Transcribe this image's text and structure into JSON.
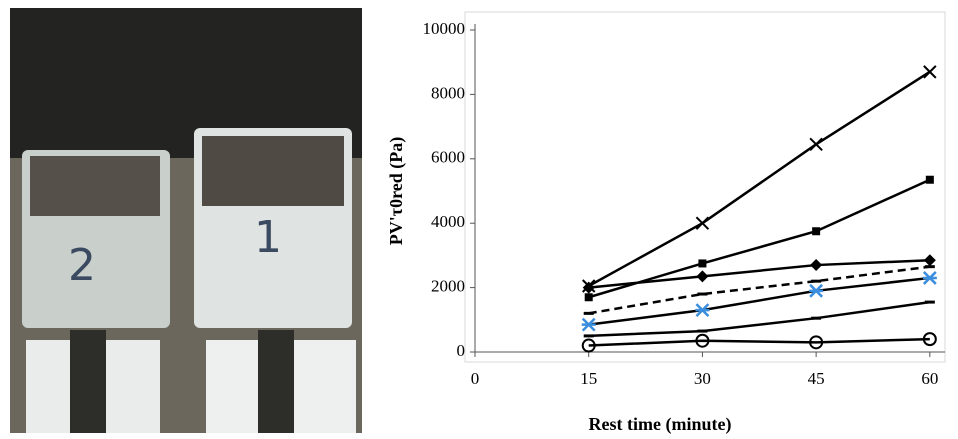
{
  "photo": {
    "labels": [
      "2",
      "1"
    ]
  },
  "chart_data": {
    "type": "line",
    "x_label": "Rest time (minute)",
    "y_label": "PV'τ0red (Pa)",
    "x": [
      15,
      30,
      45,
      60
    ],
    "xlim": [
      0,
      62
    ],
    "xticks": [
      0,
      15,
      30,
      45,
      60
    ],
    "ylim": [
      0,
      10000
    ],
    "yticks": [
      0,
      2000,
      4000,
      6000,
      8000,
      10000
    ],
    "series": [
      {
        "color": "#000000",
        "marker": "x",
        "values": [
          2050,
          4000,
          6450,
          8700
        ]
      },
      {
        "color": "#000000",
        "marker": "square",
        "values": [
          1700,
          2750,
          3750,
          5350
        ]
      },
      {
        "color": "#000000",
        "marker": "diamond",
        "values": [
          2000,
          2350,
          2700,
          2850
        ]
      },
      {
        "color": "#000000",
        "marker": "dash",
        "dash": true,
        "values": [
          1200,
          1800,
          2200,
          2650
        ]
      },
      {
        "color": "#000000",
        "marker": "asterisk",
        "marker_color": "#3b8ede",
        "values": [
          850,
          1300,
          1900,
          2300
        ]
      },
      {
        "color": "#000000",
        "marker": "dash",
        "values": [
          500,
          650,
          1050,
          1550
        ]
      },
      {
        "color": "#000000",
        "marker": "circle",
        "values": [
          200,
          350,
          300,
          400
        ]
      }
    ]
  }
}
